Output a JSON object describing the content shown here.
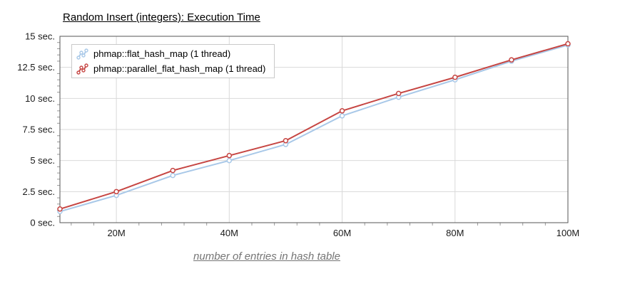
{
  "chart_data": {
    "type": "line",
    "title": "Random Insert (integers): Execution Time",
    "xlabel": "number of entries in hash table",
    "ylabel": "",
    "x": [
      10,
      20,
      30,
      40,
      50,
      60,
      70,
      80,
      90,
      100
    ],
    "x_unit": "millions of entries",
    "xlim": [
      10,
      100
    ],
    "ylim": [
      0,
      15
    ],
    "grid": true,
    "legend_position": "top-left",
    "x_ticks": [
      {
        "v": 20,
        "label": "20M"
      },
      {
        "v": 40,
        "label": "40M"
      },
      {
        "v": 60,
        "label": "60M"
      },
      {
        "v": 80,
        "label": "80M"
      },
      {
        "v": 100,
        "label": "100M"
      }
    ],
    "y_ticks": [
      {
        "v": 0,
        "label": "0 sec."
      },
      {
        "v": 2.5,
        "label": "2.5 sec."
      },
      {
        "v": 5,
        "label": "5 sec."
      },
      {
        "v": 7.5,
        "label": "7.5 sec."
      },
      {
        "v": 10,
        "label": "10 sec."
      },
      {
        "v": 12.5,
        "label": "12.5 sec."
      },
      {
        "v": 15,
        "label": "15 sec."
      }
    ],
    "series": [
      {
        "name": "phmap::flat_hash_map (1 thread)",
        "color": "#a8c8e8",
        "marker": "circle",
        "values": [
          0.9,
          2.2,
          3.8,
          5.0,
          6.3,
          8.6,
          10.1,
          11.5,
          13.0,
          14.3
        ]
      },
      {
        "name": "phmap::parallel_flat_hash_map (1 thread)",
        "color": "#c64542",
        "marker": "circle",
        "values": [
          1.1,
          2.5,
          4.2,
          5.4,
          6.6,
          9.0,
          10.4,
          11.7,
          13.1,
          14.4
        ]
      }
    ]
  },
  "colors": {
    "background": "#ffffff",
    "grid": "#d9d9d9",
    "axis_border": "#555555",
    "minor_tick": "#999999",
    "tick_text": "#1a1a1a",
    "title_text": "#000000",
    "axis_title_text": "#757575",
    "legend_border": "#c9c9c9"
  }
}
